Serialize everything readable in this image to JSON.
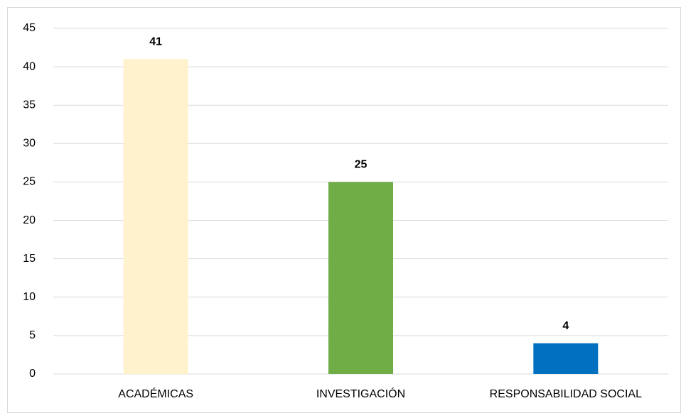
{
  "chart_data": {
    "type": "bar",
    "categories": [
      "ACADÉMICAS",
      "INVESTIGACIÓN",
      "RESPONSABILIDAD SOCIAL"
    ],
    "values": [
      41,
      25,
      4
    ],
    "colors": [
      "#FFF2CC",
      "#70AD47",
      "#0070C0"
    ],
    "ylim": [
      0,
      45
    ],
    "yticks": [
      0,
      5,
      10,
      15,
      20,
      25,
      30,
      35,
      40,
      45
    ],
    "grid": true
  }
}
